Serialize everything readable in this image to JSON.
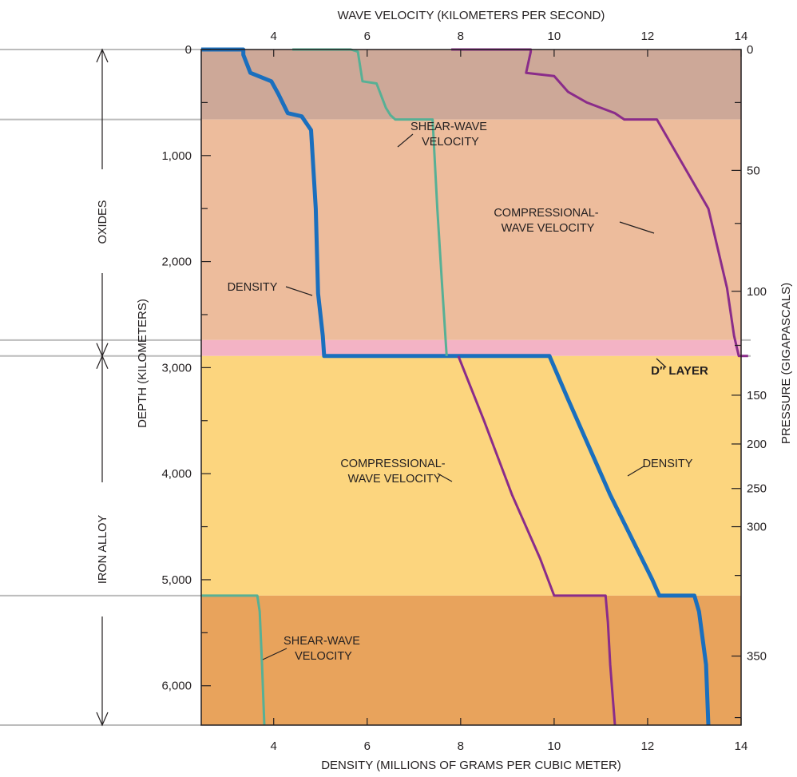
{
  "chart_data": {
    "type": "line",
    "top_axis": {
      "title": "WAVE VELOCITY (KILOMETERS PER SECOND)",
      "ticks": [
        4,
        6,
        8,
        10,
        12,
        14
      ],
      "range": [
        2.45,
        14
      ]
    },
    "bottom_axis": {
      "title": "DENSITY (MILLIONS OF GRAMS PER CUBIC METER)",
      "ticks": [
        4,
        6,
        8,
        10,
        12,
        14
      ],
      "range": [
        2.45,
        14
      ]
    },
    "left_axis": {
      "title": "DEPTH (KILOMETERS)",
      "ticks": [
        0,
        1000,
        2000,
        3000,
        4000,
        5000,
        6000
      ],
      "tick_labels": [
        "0",
        "1,000",
        "2,000",
        "3,000",
        "4,000",
        "5,000",
        "6,000"
      ],
      "range": [
        0,
        6371
      ],
      "inverted": true
    },
    "right_axis": {
      "title": "PRESSURE (GIGAPASCALS)",
      "ticks": [
        {
          "label": "0",
          "depth": 0
        },
        {
          "label": "50",
          "depth": 1140
        },
        {
          "label": "100",
          "depth": 2280
        },
        {
          "label": "150",
          "depth": 3260
        },
        {
          "label": "200",
          "depth": 3720
        },
        {
          "label": "250",
          "depth": 4140
        },
        {
          "label": "300",
          "depth": 4500
        },
        {
          "label": "350",
          "depth": 5720
        }
      ],
      "minor_tick_depths": [
        500,
        1640,
        2790,
        4960,
        6300
      ]
    },
    "layers": [
      {
        "name": "upper-mantle",
        "top": 0,
        "bottom": 660,
        "color": "#cda898"
      },
      {
        "name": "lower-mantle",
        "top": 660,
        "bottom": 2740,
        "color": "#edbc9c"
      },
      {
        "name": "d-double-prime-layer",
        "top": 2740,
        "bottom": 2890,
        "color": "#f3b3c5"
      },
      {
        "name": "outer-core",
        "top": 2890,
        "bottom": 5150,
        "color": "#fcd57e"
      },
      {
        "name": "inner-core",
        "top": 5150,
        "bottom": 6371,
        "color": "#e8a35c"
      }
    ],
    "boundary_lines": [
      0,
      660,
      2740,
      2890,
      5150,
      6371
    ],
    "series": [
      {
        "name": "DENSITY",
        "color": "#1a6fbe",
        "width": 5,
        "points": [
          [
            2.45,
            0
          ],
          [
            3.35,
            0
          ],
          [
            3.35,
            10
          ],
          [
            3.35,
            50
          ],
          [
            3.5,
            220
          ],
          [
            3.95,
            300
          ],
          [
            4.1,
            420
          ],
          [
            4.3,
            600
          ],
          [
            4.6,
            630
          ],
          [
            4.8,
            760
          ],
          [
            4.9,
            1500
          ],
          [
            4.95,
            2300
          ],
          [
            5.05,
            2700
          ],
          [
            5.08,
            2890
          ],
          [
            9.9,
            2890
          ],
          [
            10.3,
            3300
          ],
          [
            11.2,
            4200
          ],
          [
            12.1,
            5000
          ],
          [
            12.25,
            5150
          ],
          [
            13.0,
            5150
          ],
          [
            13.1,
            5300
          ],
          [
            13.25,
            5800
          ],
          [
            13.3,
            6371
          ]
        ]
      },
      {
        "name": "SHEAR-WAVE VELOCITY",
        "color": "#57b095",
        "width": 3,
        "segments": [
          [
            [
              4.4,
              0
            ],
            [
              5.65,
              0
            ],
            [
              5.8,
              20
            ],
            [
              5.9,
              300
            ],
            [
              6.2,
              320
            ],
            [
              6.4,
              550
            ],
            [
              6.5,
              620
            ],
            [
              6.6,
              660
            ],
            [
              7.4,
              660
            ],
            [
              7.5,
              1500
            ],
            [
              7.6,
              2200
            ],
            [
              7.7,
              2890
            ]
          ],
          [
            [
              2.45,
              5150
            ],
            [
              3.65,
              5150
            ],
            [
              3.7,
              5300
            ],
            [
              3.75,
              5800
            ],
            [
              3.8,
              6371
            ]
          ]
        ]
      },
      {
        "name": "COMPRESSIONAL-WAVE VELOCITY",
        "color": "#8a2c8a",
        "width": 3,
        "segments": [
          [
            [
              7.8,
              0
            ],
            [
              9.5,
              0
            ],
            [
              9.5,
              20
            ],
            [
              9.4,
              220
            ],
            [
              10.0,
              250
            ],
            [
              10.3,
              400
            ],
            [
              10.7,
              500
            ],
            [
              11.3,
              600
            ],
            [
              11.5,
              660
            ],
            [
              12.2,
              660
            ],
            [
              13.3,
              1500
            ],
            [
              13.7,
              2250
            ],
            [
              13.85,
              2700
            ],
            [
              13.95,
              2890
            ],
            [
              14.15,
              2890
            ]
          ],
          [
            [
              7.95,
              2890
            ],
            [
              8.5,
              3500
            ],
            [
              9.1,
              4200
            ],
            [
              9.7,
              4800
            ],
            [
              10.0,
              5150
            ],
            [
              11.1,
              5150
            ],
            [
              11.15,
              5400
            ],
            [
              11.2,
              5800
            ],
            [
              11.3,
              6371
            ]
          ]
        ]
      }
    ],
    "annotations": {
      "shear_wave_upper": [
        "SHEAR-WAVE",
        "VELOCITY"
      ],
      "compressional_upper": [
        "COMPRESSIONAL-",
        "WAVE VELOCITY"
      ],
      "density_upper": "DENSITY",
      "d_layer": "D″ LAYER",
      "compressional_lower": [
        "COMPRESSIONAL-",
        "WAVE VELOCITY"
      ],
      "density_lower": "DENSITY",
      "shear_wave_lower": [
        "SHEAR-WAVE",
        "VELOCITY"
      ]
    },
    "side_labels": {
      "upper": "OXIDES",
      "lower": "IRON ALLOY"
    }
  }
}
